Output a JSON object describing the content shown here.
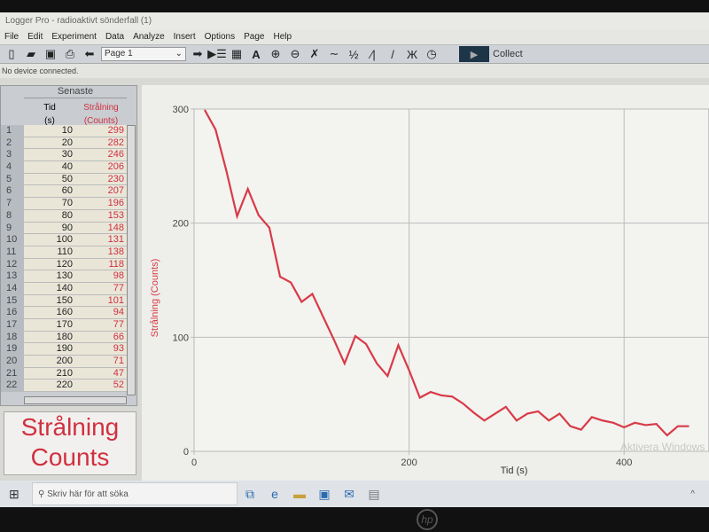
{
  "window": {
    "title": "Logger Pro - radioaktivt sönderfall (1)"
  },
  "menu": [
    "File",
    "Edit",
    "Experiment",
    "Data",
    "Analyze",
    "Insert",
    "Options",
    "Page",
    "Help"
  ],
  "toolbar": {
    "page_select": "Page 1",
    "collect_label": "Collect",
    "icons": [
      "new-icon",
      "open-icon",
      "save-icon",
      "print-icon",
      "back-arrow-icon",
      "page-select",
      "forward-arrow-icon",
      "data-browser-icon",
      "calculator-icon",
      "autoscale-icon",
      "zoom-in-icon",
      "zoom-out-icon",
      "examine-icon",
      "tangent-icon",
      "integral-icon",
      "stats-icon",
      "linear-fit-icon",
      "curve-fit-icon",
      "replay-icon"
    ]
  },
  "status": "No device connected.",
  "table": {
    "group": "Senaste",
    "columns": [
      {
        "name": "Tid",
        "unit": "(s)"
      },
      {
        "name": "Strålning",
        "unit": "(Counts)"
      }
    ],
    "rows": [
      [
        1,
        10,
        299
      ],
      [
        2,
        20,
        282
      ],
      [
        3,
        30,
        246
      ],
      [
        4,
        40,
        206
      ],
      [
        5,
        50,
        230
      ],
      [
        6,
        60,
        207
      ],
      [
        7,
        70,
        196
      ],
      [
        8,
        80,
        153
      ],
      [
        9,
        90,
        148
      ],
      [
        10,
        100,
        131
      ],
      [
        11,
        110,
        138
      ],
      [
        12,
        120,
        118
      ],
      [
        13,
        130,
        98
      ],
      [
        14,
        140,
        77
      ],
      [
        15,
        150,
        101
      ],
      [
        16,
        160,
        94
      ],
      [
        17,
        170,
        77
      ],
      [
        18,
        180,
        66
      ],
      [
        19,
        190,
        93
      ],
      [
        20,
        200,
        71
      ],
      [
        21,
        210,
        47
      ],
      [
        22,
        220,
        52
      ]
    ]
  },
  "meter": {
    "line1": "Strålning",
    "line2": "Counts"
  },
  "taskbar": {
    "search_placeholder": "Skriv här för att söka"
  },
  "watermark": "Aktivera Windows",
  "colors": {
    "series": "#d83a48",
    "accent": "#1e3548"
  },
  "chart_data": {
    "type": "line",
    "xlabel": "Tid (s)",
    "ylabel": "Strålning (Counts)",
    "xlim": [
      0,
      460
    ],
    "ylim": [
      0,
      300
    ],
    "grid": true,
    "xticks": [
      0,
      200,
      400
    ],
    "yticks": [
      0,
      100,
      200,
      300
    ],
    "x": [
      10,
      20,
      30,
      40,
      50,
      60,
      70,
      80,
      90,
      100,
      110,
      120,
      130,
      140,
      150,
      160,
      170,
      180,
      190,
      200,
      210,
      220,
      230,
      240,
      250,
      260,
      270,
      280,
      290,
      300,
      310,
      320,
      330,
      340,
      350,
      360,
      370,
      380,
      390,
      400,
      410,
      420,
      430,
      440,
      450,
      460
    ],
    "y": [
      299,
      282,
      246,
      206,
      230,
      207,
      196,
      153,
      148,
      131,
      138,
      118,
      98,
      77,
      101,
      94,
      77,
      66,
      93,
      71,
      47,
      52,
      49,
      48,
      42,
      34,
      27,
      33,
      39,
      27,
      33,
      35,
      27,
      33,
      22,
      19,
      30,
      27,
      25,
      21,
      25,
      23,
      24,
      14,
      22,
      22
    ]
  }
}
